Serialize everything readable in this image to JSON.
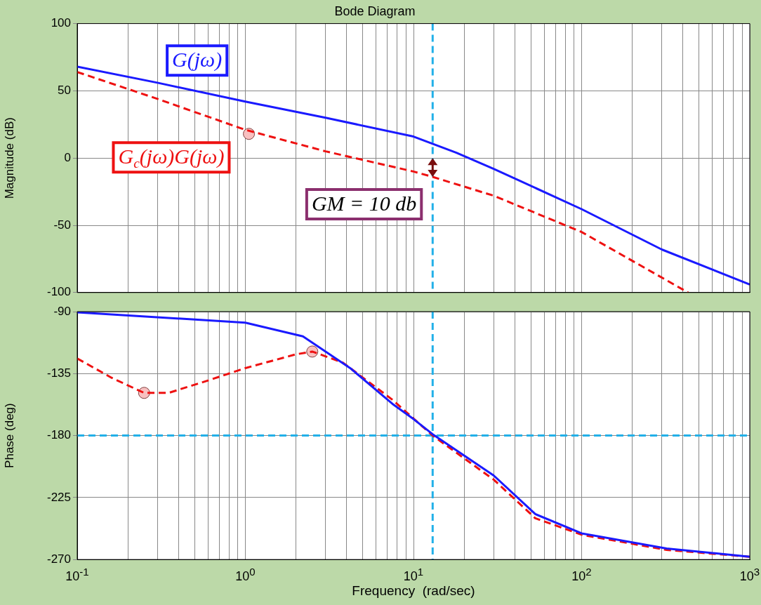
{
  "chart_data": [
    {
      "type": "line",
      "title": "Bode Diagram",
      "ylabel": "Magnitude (dB)",
      "log": "x",
      "grid": true,
      "legend": false,
      "tick_labels": "y",
      "marker": "none",
      "xlim": [
        0.1,
        1000
      ],
      "xticks": [
        0.1,
        0.2,
        0.3,
        0.4,
        0.5,
        0.6,
        0.7,
        0.8,
        0.9,
        1,
        2,
        3,
        4,
        5,
        6,
        7,
        8,
        9,
        10,
        20,
        30,
        40,
        50,
        60,
        70,
        80,
        90,
        100,
        200,
        300,
        400,
        500,
        600,
        700,
        800,
        900,
        1000
      ],
      "ylim": [
        -100,
        100
      ],
      "yticks": [
        -100,
        -50,
        0,
        50,
        100
      ],
      "series": [
        {
          "name": "G(jω)",
          "color": "#1a1aff",
          "line_style": "solid",
          "x": [
            0.1,
            0.3,
            1,
            3,
            10,
            18,
            30,
            100,
            300,
            1000
          ],
          "values": [
            68,
            56,
            42,
            30,
            16,
            4,
            -8,
            -38,
            -68,
            -94
          ]
        },
        {
          "name": "G$_{c}$(jω)G(jω)",
          "color": "#ee1111",
          "line_style": "dashed",
          "x": [
            0.1,
            0.3,
            1,
            3,
            10,
            13,
            30,
            100,
            430
          ],
          "values": [
            64,
            44,
            21,
            5,
            -10,
            -14,
            -28,
            -55,
            -100
          ]
        },
        {
          "type": "scatter",
          "color": "#f8c0c0",
          "marker": "circle",
          "x": [
            1.05
          ],
          "values": [
            18
          ]
        }
      ],
      "ref_lines": [
        {
          "axis": "x",
          "value": 13,
          "color": "#22b0e8",
          "line_style": "dashed"
        }
      ],
      "annotations": [
        {
          "text": "GM = 10 db",
          "x": 13,
          "y": -7
        }
      ]
    },
    {
      "type": "line",
      "xlabel": "Frequency  (rad/sec)",
      "ylabel": "Phase (deg)",
      "log": "x",
      "grid": true,
      "legend": false,
      "marker": "none",
      "xlim": [
        0.1,
        1000
      ],
      "xticks": [
        {
          "value": 0.1,
          "label": "10$^{-1}$"
        },
        {
          "value": 0.2,
          "label": null
        },
        {
          "value": 0.3,
          "label": null
        },
        {
          "value": 0.4,
          "label": null
        },
        {
          "value": 0.5,
          "label": null
        },
        {
          "value": 0.6,
          "label": null
        },
        {
          "value": 0.7,
          "label": null
        },
        {
          "value": 0.8,
          "label": null
        },
        {
          "value": 0.9,
          "label": null
        },
        {
          "value": 1,
          "label": "10$^{0}$"
        },
        {
          "value": 2,
          "label": null
        },
        {
          "value": 3,
          "label": null
        },
        {
          "value": 4,
          "label": null
        },
        {
          "value": 5,
          "label": null
        },
        {
          "value": 6,
          "label": null
        },
        {
          "value": 7,
          "label": null
        },
        {
          "value": 8,
          "label": null
        },
        {
          "value": 9,
          "label": null
        },
        {
          "value": 10,
          "label": "10$^{1}$"
        },
        {
          "value": 20,
          "label": null
        },
        {
          "value": 30,
          "label": null
        },
        {
          "value": 40,
          "label": null
        },
        {
          "value": 50,
          "label": null
        },
        {
          "value": 60,
          "label": null
        },
        {
          "value": 70,
          "label": null
        },
        {
          "value": 80,
          "label": null
        },
        {
          "value": 90,
          "label": null
        },
        {
          "value": 100,
          "label": "10$^{2}$"
        },
        {
          "value": 200,
          "label": null
        },
        {
          "value": 300,
          "label": null
        },
        {
          "value": 400,
          "label": null
        },
        {
          "value": 500,
          "label": null
        },
        {
          "value": 600,
          "label": null
        },
        {
          "value": 700,
          "label": null
        },
        {
          "value": 800,
          "label": null
        },
        {
          "value": 900,
          "label": null
        },
        {
          "value": 1000,
          "label": "10$^{3}$"
        }
      ],
      "ylim": [
        -270,
        -90
      ],
      "yticks": [
        -270,
        -225,
        -180,
        -135,
        -90
      ],
      "series": [
        {
          "color": "#1a1aff",
          "line_style": "solid",
          "x": [
            0.1,
            1,
            2.2,
            4.2,
            7.5,
            10,
            13,
            30,
            53,
            100,
            320,
            1000
          ],
          "values": [
            -90.5,
            -98,
            -108,
            -131,
            -157,
            -168,
            -179,
            -209,
            -237,
            -251,
            -262,
            -268
          ]
        },
        {
          "color": "#ee1111",
          "line_style": "dashed",
          "x": [
            0.1,
            0.16,
            0.25,
            0.35,
            0.6,
            1,
            2,
            2.5,
            3.8,
            7.5,
            13,
            30,
            53,
            100,
            320,
            1000
          ],
          "values": [
            -124,
            -138,
            -149,
            -149,
            -140,
            -131,
            -121,
            -119,
            -127,
            -154,
            -180,
            -212,
            -240,
            -252,
            -263,
            -268
          ]
        },
        {
          "type": "scatter",
          "color": "#f8c0c0",
          "marker": "circle",
          "x": [
            0.25,
            2.5
          ],
          "values": [
            -149,
            -119
          ]
        }
      ],
      "ref_lines": [
        {
          "axis": "x",
          "value": 13,
          "color": "#22b0e8",
          "line_style": "dashed"
        },
        {
          "axis": "y",
          "value": -180,
          "color": "#22b0e8",
          "line_style": "dashed"
        }
      ]
    }
  ]
}
